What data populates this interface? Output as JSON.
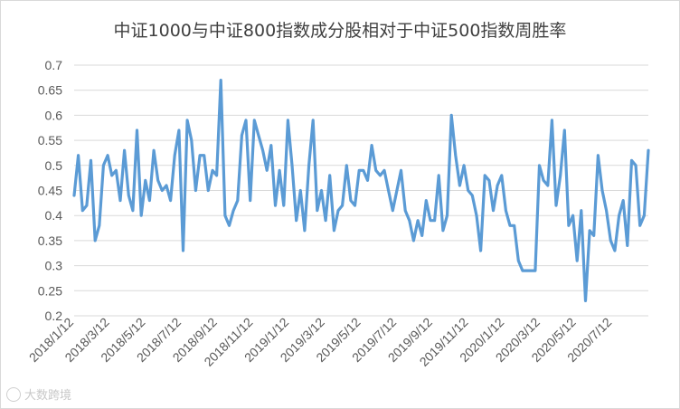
{
  "chart_data": {
    "type": "line",
    "title": "中证1000与中证800指数成分股相对于中证500指数周胜率",
    "xlabel": "",
    "ylabel": "",
    "ylim": [
      0.2,
      0.7
    ],
    "yticks": [
      "0.2",
      "0.25",
      "0.3",
      "0.35",
      "0.4",
      "0.45",
      "0.5",
      "0.55",
      "0.6",
      "0.65",
      "0.7"
    ],
    "xticks": [
      "2018/1/12",
      "2018/3/12",
      "2018/5/12",
      "2018/7/12",
      "2018/9/12",
      "2018/11/12",
      "2019/1/12",
      "2019/3/12",
      "2019/5/12",
      "2019/7/12",
      "2019/9/12",
      "2019/11/12",
      "2020/1/12",
      "2020/3/12",
      "2020/5/12",
      "2020/7/12"
    ],
    "grid": true,
    "legend": "none",
    "line_color": "#5b9bd5",
    "series": [
      {
        "values": [
          0.44,
          0.52,
          0.41,
          0.42,
          0.51,
          0.35,
          0.38,
          0.5,
          0.52,
          0.48,
          0.49,
          0.43,
          0.53,
          0.44,
          0.41,
          0.57,
          0.4,
          0.47,
          0.43,
          0.53,
          0.47,
          0.45,
          0.46,
          0.43,
          0.52,
          0.57,
          0.33,
          0.59,
          0.55,
          0.45,
          0.52,
          0.52,
          0.45,
          0.49,
          0.48,
          0.67,
          0.4,
          0.38,
          0.41,
          0.43,
          0.56,
          0.59,
          0.43,
          0.59,
          0.56,
          0.53,
          0.49,
          0.54,
          0.42,
          0.49,
          0.42,
          0.59,
          0.5,
          0.39,
          0.45,
          0.37,
          0.5,
          0.59,
          0.41,
          0.45,
          0.39,
          0.48,
          0.37,
          0.41,
          0.42,
          0.5,
          0.43,
          0.42,
          0.49,
          0.49,
          0.47,
          0.54,
          0.49,
          0.48,
          0.49,
          0.45,
          0.41,
          0.45,
          0.49,
          0.41,
          0.39,
          0.35,
          0.39,
          0.36,
          0.43,
          0.39,
          0.39,
          0.48,
          0.37,
          0.4,
          0.6,
          0.52,
          0.46,
          0.5,
          0.45,
          0.44,
          0.4,
          0.33,
          0.48,
          0.47,
          0.41,
          0.46,
          0.48,
          0.41,
          0.38,
          0.38,
          0.31,
          0.29,
          0.29,
          0.29,
          0.29,
          0.5,
          0.47,
          0.46,
          0.59,
          0.42,
          0.48,
          0.57,
          0.38,
          0.4,
          0.31,
          0.41,
          0.23,
          0.37,
          0.36,
          0.52,
          0.45,
          0.41,
          0.35,
          0.33,
          0.4,
          0.43,
          0.34,
          0.51,
          0.5,
          0.38,
          0.4,
          0.53
        ]
      }
    ]
  },
  "watermark": "大数跨境"
}
